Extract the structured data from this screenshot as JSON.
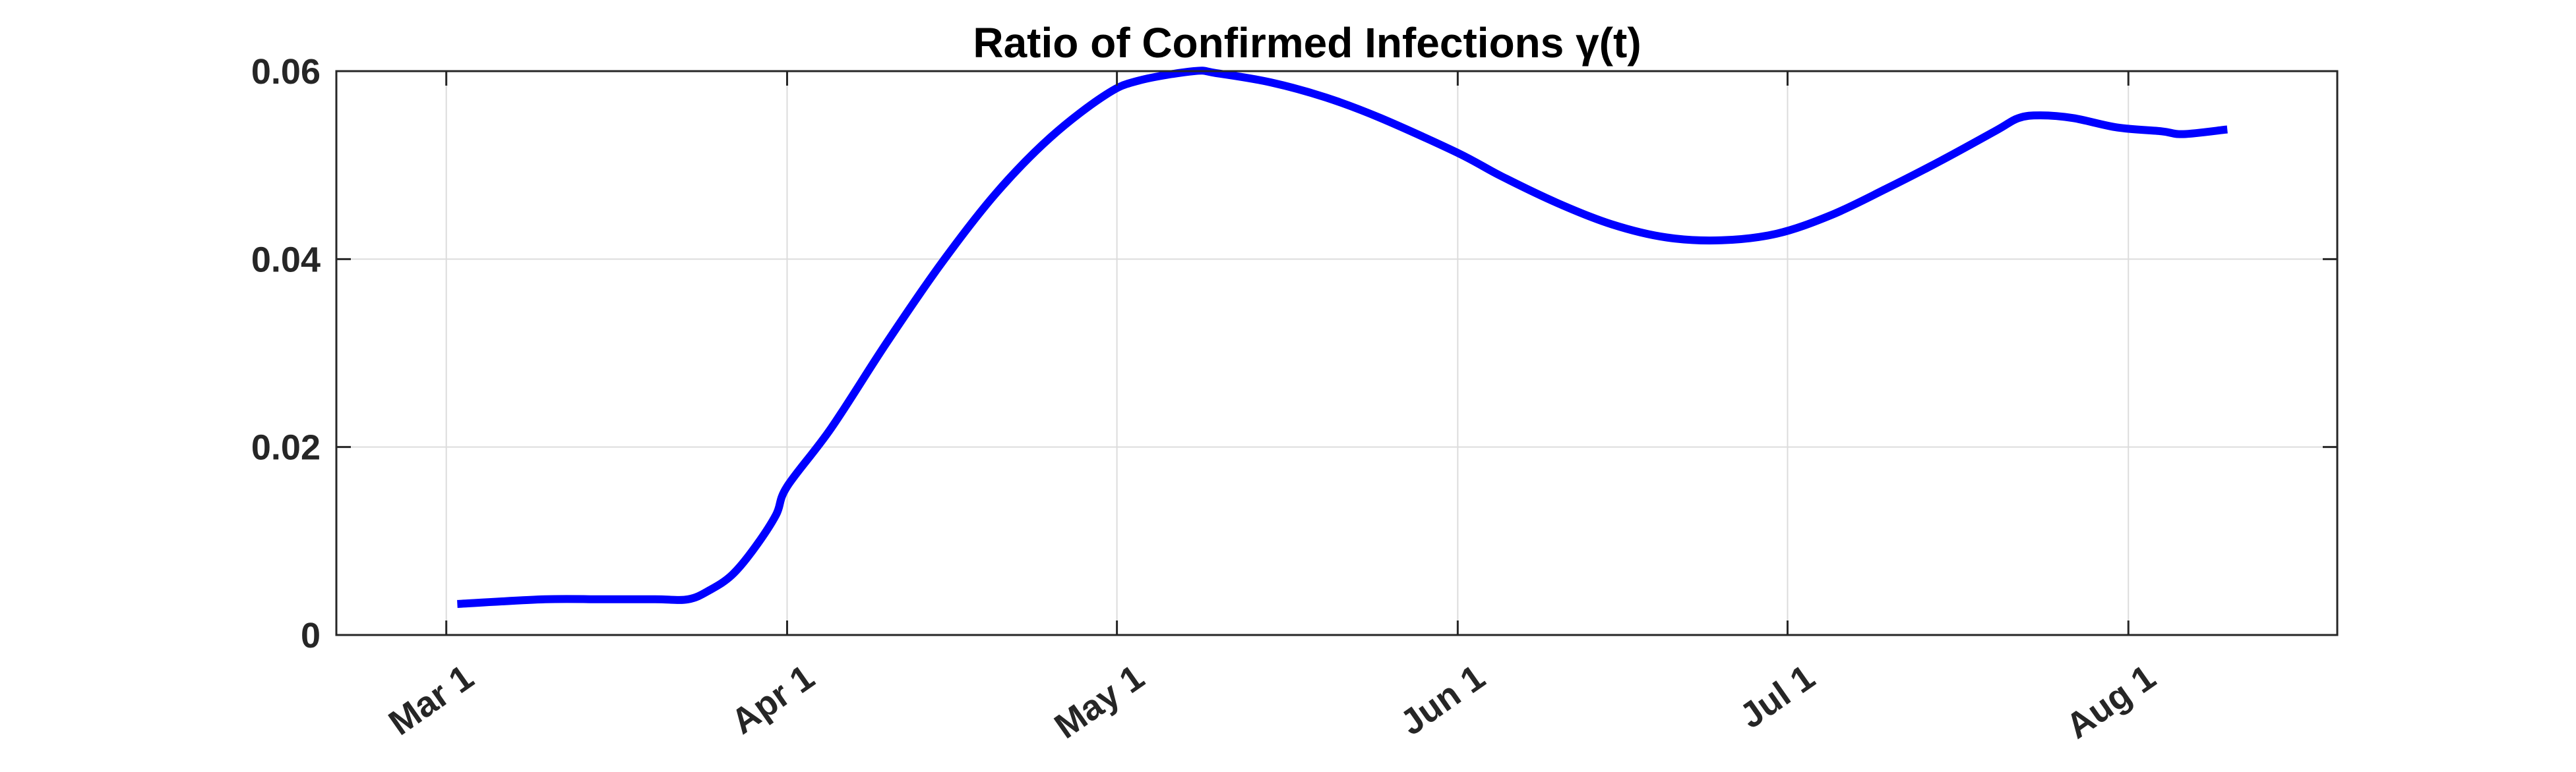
{
  "chart_data": {
    "type": "line",
    "title": "Ratio of Confirmed Infections γ(t)",
    "xlabel": "",
    "ylabel": "",
    "x_type": "date",
    "year": "2020",
    "xlim": [
      "2020-02-20",
      "2020-08-20"
    ],
    "ylim": [
      0,
      0.06
    ],
    "grid": true,
    "legend": "none",
    "x_ticks": [
      {
        "date": "2020-03-01",
        "label": "Mar 1"
      },
      {
        "date": "2020-04-01",
        "label": "Apr 1"
      },
      {
        "date": "2020-05-01",
        "label": "May 1"
      },
      {
        "date": "2020-06-01",
        "label": "Jun 1"
      },
      {
        "date": "2020-07-01",
        "label": "Jul 1"
      },
      {
        "date": "2020-08-01",
        "label": "Aug 1"
      }
    ],
    "y_ticks": [
      {
        "value": 0,
        "label": "0"
      },
      {
        "value": 0.02,
        "label": "0.02"
      },
      {
        "value": 0.04,
        "label": "0.04"
      },
      {
        "value": 0.06,
        "label": "0.06"
      }
    ],
    "series": [
      {
        "color": "#0000ff",
        "x": [
          "2020-03-02",
          "2020-03-10",
          "2020-03-15",
          "2020-03-20",
          "2020-03-23",
          "2020-03-25",
          "2020-03-27",
          "2020-03-29",
          "2020-03-31",
          "2020-04-01",
          "2020-04-05",
          "2020-04-10",
          "2020-04-15",
          "2020-04-20",
          "2020-04-25",
          "2020-04-30",
          "2020-05-03",
          "2020-05-08",
          "2020-05-10",
          "2020-05-15",
          "2020-05-20",
          "2020-05-25",
          "2020-06-01",
          "2020-06-05",
          "2020-06-10",
          "2020-06-15",
          "2020-06-20",
          "2020-06-25",
          "2020-06-30",
          "2020-07-05",
          "2020-07-10",
          "2020-07-15",
          "2020-07-20",
          "2020-07-22",
          "2020-07-24",
          "2020-07-27",
          "2020-07-31",
          "2020-08-04",
          "2020-08-06",
          "2020-08-10"
        ],
        "y": [
          0.0033,
          0.0038,
          0.0038,
          0.0038,
          0.0038,
          0.0048,
          0.0064,
          0.0092,
          0.0128,
          0.0158,
          0.022,
          0.031,
          0.0395,
          0.047,
          0.053,
          0.0575,
          0.059,
          0.06,
          0.0598,
          0.0588,
          0.0572,
          0.055,
          0.0513,
          0.0488,
          0.046,
          0.0437,
          0.0423,
          0.042,
          0.0427,
          0.0447,
          0.0475,
          0.0505,
          0.0537,
          0.055,
          0.0553,
          0.055,
          0.054,
          0.0536,
          0.0533,
          0.0538
        ]
      }
    ]
  }
}
